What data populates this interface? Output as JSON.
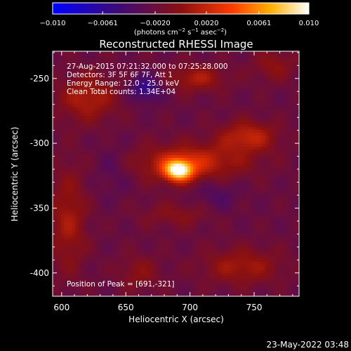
{
  "chart_data": {
    "type": "heatmap",
    "title": "Reconstructed RHESSI Image",
    "xlabel": "Heliocentric X (arcsec)",
    "ylabel": "Heliocentric Y (arcsec)",
    "xlim": [
      593,
      785
    ],
    "ylim": [
      -418,
      -229
    ],
    "x_ticks": [
      "600",
      "650",
      "700",
      "750"
    ],
    "x_tick_values": [
      600,
      650,
      700,
      750
    ],
    "y_ticks": [
      "-250",
      "-300",
      "-350",
      "-400"
    ],
    "y_tick_values": [
      -250,
      -300,
      -350,
      -400
    ],
    "colorbar": {
      "range": [
        -0.01,
        0.01
      ],
      "tick_labels": [
        "−0.010",
        "−0.0061",
        "−0.0020",
        "0.0020",
        "0.0061",
        "0.010"
      ],
      "tick_values": [
        -0.01,
        -0.0061,
        -0.002,
        0.002,
        0.0061,
        0.01
      ],
      "unit_line1": "(photons cm",
      "unit_sup1": "−2",
      "unit_line2": " s",
      "unit_sup2": "−1",
      "unit_line3": " asec",
      "unit_sup3": "−2",
      "unit_line4": ")"
    },
    "annotations": [
      "27-Aug-2015 07:21:32.000 to 07:25:28.000",
      "Detectors: 3F 5F 6F 7F, Att 1",
      "Energy Range: 12.0 - 25.0 keV",
      "Clean    Total counts: 1.34E+04"
    ],
    "peak_label": "Position of Peak = [691,-321]",
    "peak": [
      691,
      -321
    ],
    "grid": false,
    "colormap_stops": [
      "#0000ff",
      "#3c0a7a",
      "#8a1010",
      "#ff3a00",
      "#ffb000",
      "#ffffff"
    ]
  },
  "footer_timestamp": "23-May-2022 03:48"
}
